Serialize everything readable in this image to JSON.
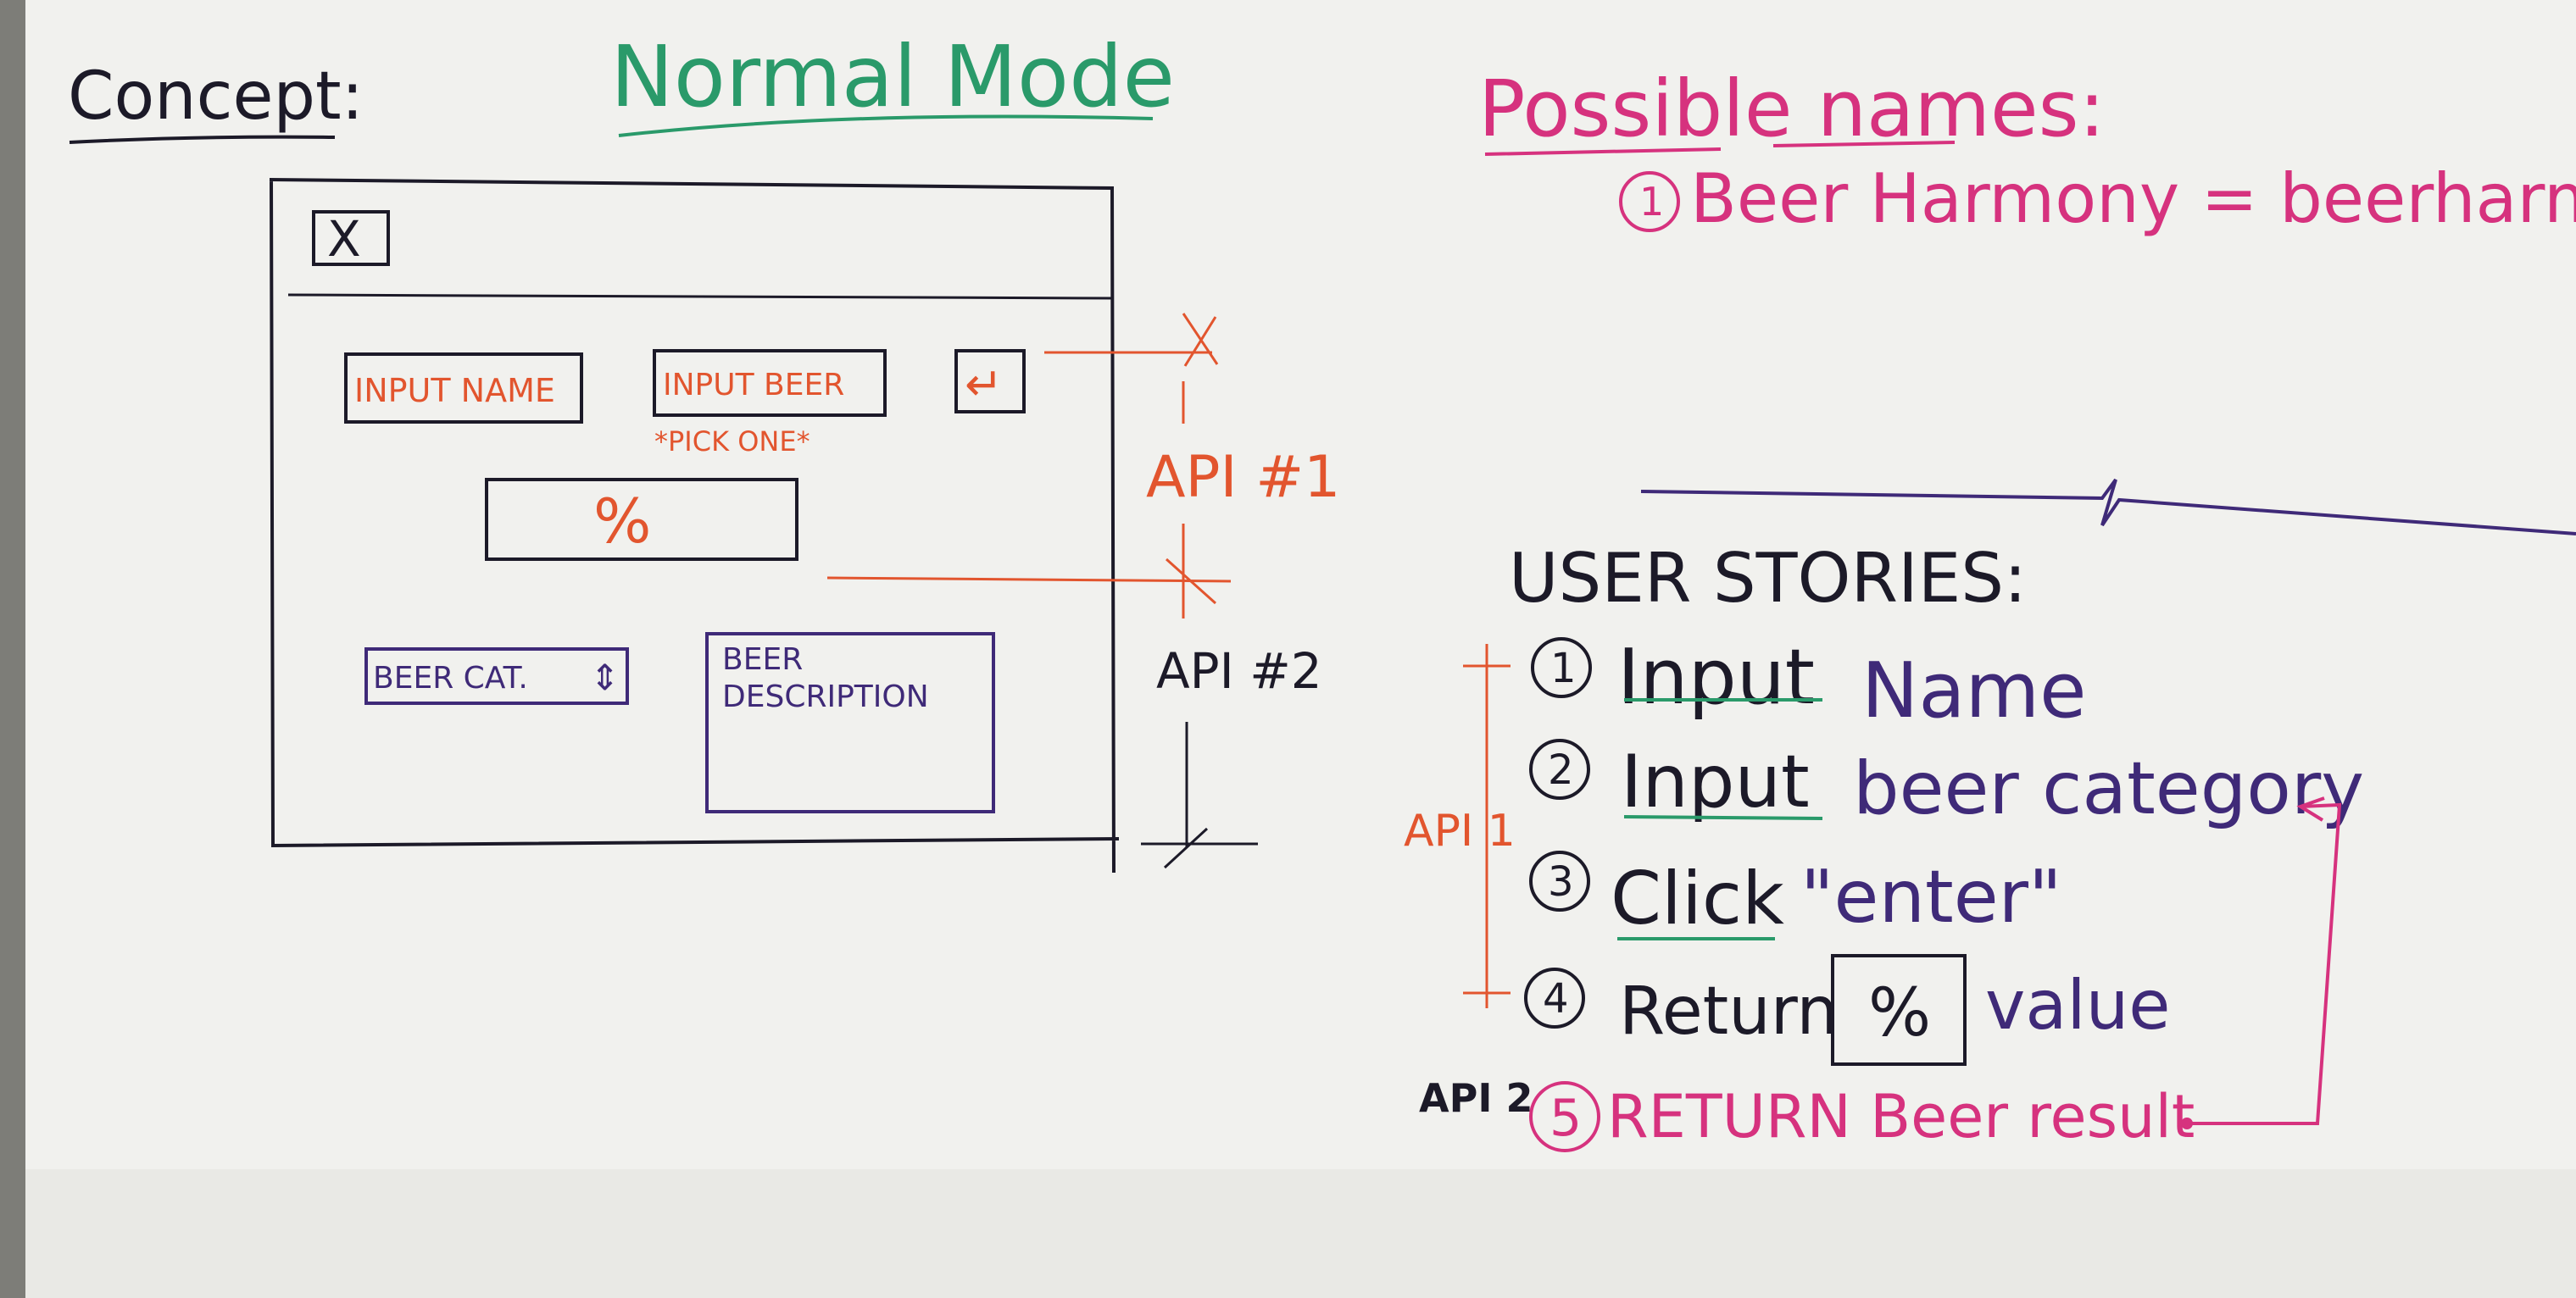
{
  "colors": {
    "black": "#1c1a28",
    "green": "#2a9a6a",
    "magenta": "#d6327e",
    "orange": "#e2552e",
    "purple": "#3f2a78",
    "board": "#f1f1ee"
  },
  "concept_label": "Concept:",
  "mode_title": "Normal Mode",
  "names": {
    "heading": "Possible names:",
    "items": [
      {
        "number": "1",
        "text": "Beer Harmony = beerharmony"
      }
    ]
  },
  "mockup": {
    "close_symbol": "X",
    "input_name": "INPUT NAME",
    "input_beer": "INPUT BEER",
    "pick_one": "*PICK ONE*",
    "enter_symbol": "↵",
    "percent": "%",
    "beer_cat": "BEER CAT.",
    "beer_cat_arrows": "⇕",
    "beer_description_line1": "BEER",
    "beer_description_line2": "DESCRIPTION"
  },
  "api_markers": {
    "api1": "API #1",
    "api2": "API #2"
  },
  "user_stories": {
    "heading": "USER STORIES:",
    "range_label_api1": "API 1",
    "range_label_api2": "API 2",
    "items": [
      {
        "number": "1",
        "verb": "Input",
        "rest": "Name"
      },
      {
        "number": "2",
        "verb": "Input",
        "rest": "beer category"
      },
      {
        "number": "3",
        "verb": "Click",
        "rest": "\"enter\""
      },
      {
        "number": "4",
        "verb": "Return",
        "boxed": "%",
        "rest": "value"
      },
      {
        "number": "5",
        "text": "RETURN Beer result"
      }
    ]
  }
}
